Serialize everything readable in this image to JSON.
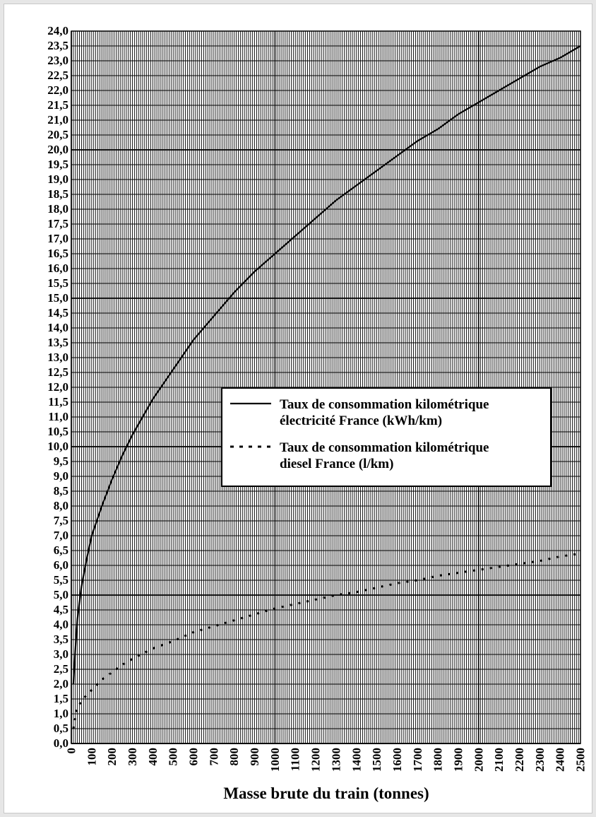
{
  "chart_data": {
    "type": "line",
    "title": "",
    "xlabel": "Masse brute du train (tonnes)",
    "ylabel": "",
    "xlim": [
      0,
      2500
    ],
    "ylim": [
      0,
      24
    ],
    "grid": true,
    "legend_position": "center-right",
    "x_ticks": [
      0,
      100,
      200,
      300,
      400,
      500,
      600,
      700,
      800,
      900,
      1000,
      1100,
      1200,
      1300,
      1400,
      1500,
      1600,
      1700,
      1800,
      1900,
      2000,
      2100,
      2200,
      2300,
      2400,
      2500
    ],
    "y_tick_labels": [
      "0,0",
      "0,5",
      "1,0",
      "1,5",
      "2,0",
      "2,5",
      "3,0",
      "3,5",
      "4,0",
      "4,5",
      "5,0",
      "5,5",
      "6,0",
      "6,5",
      "7,0",
      "7,5",
      "8,0",
      "8,5",
      "9,0",
      "9,5",
      "10,0",
      "10,5",
      "11,0",
      "11,5",
      "12,0",
      "12,5",
      "13,0",
      "13,5",
      "14,0",
      "14,5",
      "15,0",
      "15,5",
      "16,0",
      "16,5",
      "17,0",
      "17,5",
      "18,0",
      "18,5",
      "19,0",
      "19,5",
      "20,0",
      "20,5",
      "21,0",
      "21,5",
      "22,0",
      "22,5",
      "23,0",
      "23,5",
      "24,0"
    ],
    "series": [
      {
        "name": "Taux de consommation kilométrique électricité France (kWh/km)",
        "style": "solid",
        "color": "#000000",
        "points": [
          [
            10,
            2.0
          ],
          [
            20,
            3.2
          ],
          [
            30,
            4.2
          ],
          [
            50,
            5.3
          ],
          [
            75,
            6.2
          ],
          [
            100,
            7.0
          ],
          [
            150,
            8.0
          ],
          [
            200,
            8.9
          ],
          [
            250,
            9.7
          ],
          [
            300,
            10.4
          ],
          [
            400,
            11.6
          ],
          [
            500,
            12.6
          ],
          [
            600,
            13.6
          ],
          [
            700,
            14.4
          ],
          [
            800,
            15.2
          ],
          [
            900,
            15.9
          ],
          [
            1000,
            16.5
          ],
          [
            1100,
            17.1
          ],
          [
            1200,
            17.7
          ],
          [
            1300,
            18.3
          ],
          [
            1400,
            18.8
          ],
          [
            1500,
            19.3
          ],
          [
            1600,
            19.8
          ],
          [
            1700,
            20.3
          ],
          [
            1800,
            20.7
          ],
          [
            1900,
            21.2
          ],
          [
            2000,
            21.6
          ],
          [
            2100,
            22.0
          ],
          [
            2200,
            22.4
          ],
          [
            2300,
            22.8
          ],
          [
            2400,
            23.1
          ],
          [
            2500,
            23.5
          ]
        ]
      },
      {
        "name": "Taux de consommation kilométrique diesel France (l/km)",
        "style": "dotted",
        "color": "#000000",
        "points": [
          [
            10,
            0.5
          ],
          [
            25,
            1.1
          ],
          [
            50,
            1.45
          ],
          [
            100,
            1.8
          ],
          [
            150,
            2.15
          ],
          [
            200,
            2.4
          ],
          [
            250,
            2.65
          ],
          [
            300,
            2.85
          ],
          [
            400,
            3.2
          ],
          [
            500,
            3.45
          ],
          [
            600,
            3.75
          ],
          [
            700,
            3.95
          ],
          [
            800,
            4.15
          ],
          [
            900,
            4.35
          ],
          [
            1000,
            4.55
          ],
          [
            1100,
            4.7
          ],
          [
            1200,
            4.85
          ],
          [
            1300,
            5.0
          ],
          [
            1400,
            5.1
          ],
          [
            1500,
            5.25
          ],
          [
            1600,
            5.4
          ],
          [
            1700,
            5.5
          ],
          [
            1800,
            5.65
          ],
          [
            1900,
            5.75
          ],
          [
            2000,
            5.85
          ],
          [
            2100,
            5.95
          ],
          [
            2200,
            6.05
          ],
          [
            2300,
            6.15
          ],
          [
            2400,
            6.3
          ],
          [
            2500,
            6.4
          ]
        ]
      }
    ],
    "legend": [
      {
        "line1": "Taux de consommation kilométrique",
        "line2": "électricité France (kWh/km)",
        "style": "solid"
      },
      {
        "line1": "Taux de consommation kilométrique",
        "line2": "diesel France (l/km)",
        "style": "dotted"
      }
    ]
  }
}
